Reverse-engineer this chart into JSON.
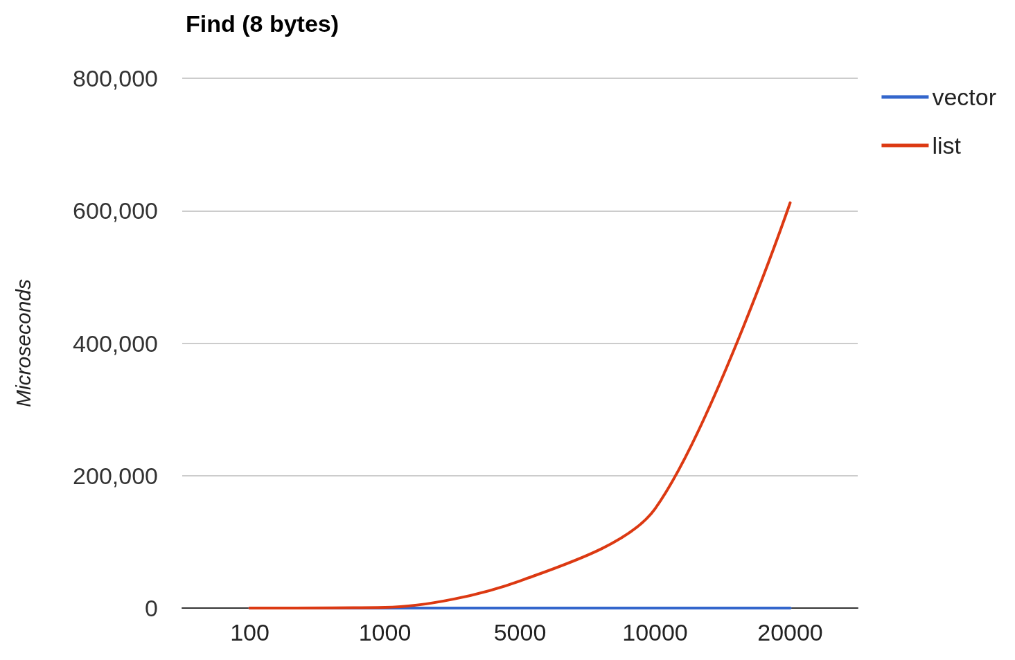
{
  "chart_data": {
    "type": "line",
    "title": "Find (8 bytes)",
    "ylabel": "Microseconds",
    "categories": [
      "100",
      "1000",
      "5000",
      "10000",
      "20000"
    ],
    "series": [
      {
        "name": "vector",
        "color": "#3366cc",
        "values": [
          0,
          0,
          0,
          0,
          0
        ]
      },
      {
        "name": "list",
        "color": "#dc3912",
        "values": [
          0,
          1000,
          41000,
          150000,
          612000
        ]
      }
    ],
    "ylim": [
      0,
      800000
    ],
    "yticks": [
      0,
      {
        "value": 200000,
        "label": "200,000"
      },
      {
        "value": 400000,
        "label": "400,000"
      },
      {
        "value": 600000,
        "label": "600,000"
      },
      {
        "value": 800000,
        "label": "800,000"
      }
    ],
    "grid": "y",
    "legend": "top right",
    "marker": "none",
    "line_style": "solid"
  }
}
